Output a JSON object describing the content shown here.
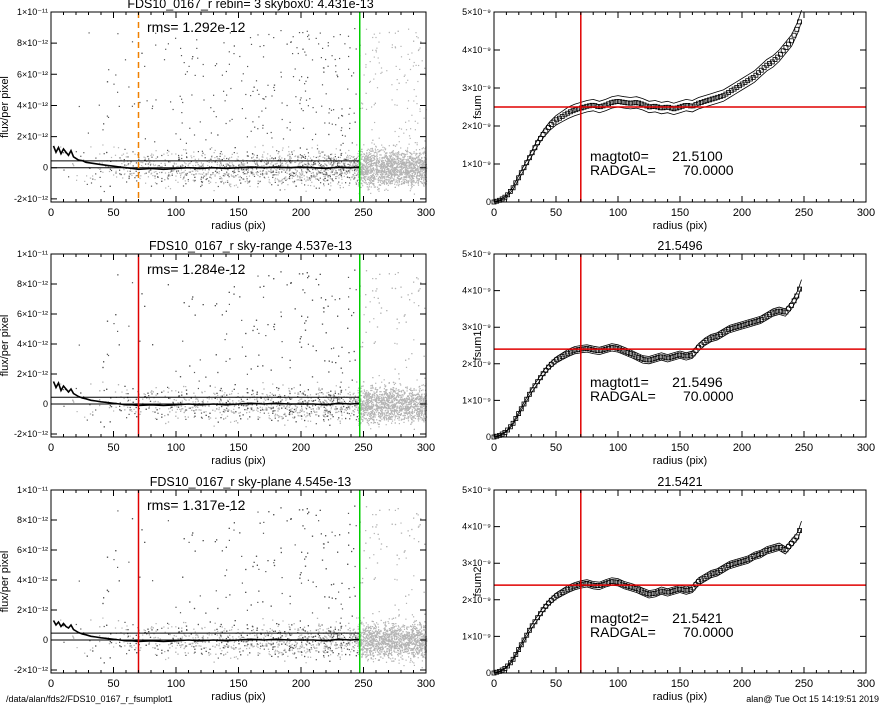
{
  "footer": {
    "path": "/data/alan/fds2/FDS10_0167_r_fsumplot1",
    "user": "alan@",
    "timestamp": "Tue Oct 15 14:19:51 2019"
  },
  "colors": {
    "background": "#ffffff",
    "axes": "#000000",
    "scatter_points": "#b4b4b4",
    "profile": "#000000",
    "red_line": "#e00000",
    "green_line": "#00cc00",
    "orange_dashed": "#f08000"
  },
  "chart_data": [
    {
      "type": "scatter",
      "title": "FDS10_0167_r rebin= 3    skybox0:  4.431e-13",
      "annotation": "rms= 1.292e-12",
      "xlabel": "radius (pix)",
      "ylabel": "flux/per pixel",
      "xlim": [
        0,
        300
      ],
      "ylim": [
        -2.2e-12,
        1e-11
      ],
      "x_ticks": [
        0,
        50,
        100,
        150,
        200,
        250,
        300
      ],
      "y_ticks": [
        -2e-12,
        0,
        2e-12,
        4e-12,
        6e-12,
        8e-12,
        1e-11
      ],
      "y_tick_labels": [
        "-2×10⁻¹²",
        "0",
        "2×10⁻¹²",
        "4×10⁻¹²",
        "6×10⁻¹²",
        "8×10⁻¹²",
        "1×10⁻¹¹"
      ],
      "hlines": [
        0,
        4.431e-13
      ],
      "vlines": [
        {
          "x": 70,
          "color": "orange",
          "style": "dashed"
        },
        {
          "x": 247,
          "color": "green",
          "style": "solid"
        }
      ],
      "profile": {
        "x": [
          2,
          4,
          6,
          8,
          10,
          12,
          14,
          16,
          18,
          20,
          22,
          25,
          28,
          32,
          36,
          40,
          45,
          50,
          55,
          60,
          65,
          70,
          80,
          90,
          100,
          110,
          120,
          130,
          140,
          150,
          160,
          170,
          180,
          190,
          200,
          210,
          220,
          230,
          240,
          247
        ],
        "y": [
          1.4e-12,
          1e-12,
          1.3e-12,
          9e-13,
          1.2e-12,
          1e-12,
          8e-13,
          1.1e-12,
          7e-13,
          6e-13,
          5e-13,
          4.5e-13,
          3.5e-13,
          3e-13,
          2.5e-13,
          2e-13,
          1.5e-13,
          1e-13,
          5e-14,
          0.0,
          -5e-14,
          -1e-13,
          -5e-14,
          -1e-13,
          -5e-14,
          0.0,
          -5e-14,
          0.0,
          -5e-14,
          0.0,
          5e-14,
          0.0,
          5e-14,
          0.0,
          5e-14,
          0.0,
          -5e-14,
          5e-14,
          0.0,
          5e-14
        ]
      }
    },
    {
      "type": "line",
      "title": "",
      "ylabel": "fsum",
      "xlabel": "radius (pix)",
      "xlim": [
        0,
        300
      ],
      "ylim": [
        0,
        5e-09
      ],
      "x_ticks": [
        0,
        50,
        100,
        150,
        200,
        250,
        300
      ],
      "y_ticks": [
        0,
        1e-09,
        2e-09,
        3e-09,
        4e-09,
        5e-09
      ],
      "y_tick_labels": [
        "0",
        "1×10⁻⁹",
        "2×10⁻⁹",
        "3×10⁻⁹",
        "4×10⁻⁹",
        "5×10⁻⁹"
      ],
      "hline": 2.5e-09,
      "vline": 70,
      "annotations": [
        "magtot0=      21.5100",
        "RADGAL=       70.0000"
      ],
      "curve": {
        "x": [
          0,
          5,
          10,
          15,
          20,
          25,
          30,
          35,
          40,
          45,
          50,
          55,
          60,
          65,
          70,
          75,
          80,
          85,
          90,
          95,
          100,
          105,
          110,
          115,
          120,
          125,
          130,
          135,
          140,
          145,
          150,
          155,
          160,
          165,
          170,
          175,
          180,
          185,
          190,
          195,
          200,
          205,
          210,
          215,
          220,
          225,
          230,
          235,
          240,
          245,
          248
        ],
        "y": [
          0.0,
          5e-11,
          1.5e-10,
          3.5e-10,
          6.5e-10,
          9.5e-10,
          1.25e-09,
          1.55e-09,
          1.8e-09,
          2e-09,
          2.15e-09,
          2.25e-09,
          2.35e-09,
          2.42e-09,
          2.47e-09,
          2.52e-09,
          2.55e-09,
          2.5e-09,
          2.55e-09,
          2.62e-09,
          2.65e-09,
          2.62e-09,
          2.6e-09,
          2.62e-09,
          2.57e-09,
          2.5e-09,
          2.52e-09,
          2.47e-09,
          2.5e-09,
          2.45e-09,
          2.5e-09,
          2.55e-09,
          2.52e-09,
          2.6e-09,
          2.65e-09,
          2.7e-09,
          2.75e-09,
          2.8e-09,
          2.9e-09,
          3e-09,
          3.1e-09,
          3.2e-09,
          3.3e-09,
          3.45e-09,
          3.6e-09,
          3.7e-09,
          3.85e-09,
          4.05e-09,
          4.25e-09,
          4.6e-09,
          4.9e-09
        ]
      },
      "upper_offset": 1.5e-10,
      "lower_offset": -1.5e-10
    },
    {
      "type": "scatter",
      "title": "FDS10_0167_r sky-range  4.537e-13",
      "annotation": "rms= 1.284e-12",
      "xlabel": "radius (pix)",
      "ylabel": "flux/per pixel",
      "xlim": [
        0,
        300
      ],
      "ylim": [
        -2.2e-12,
        1e-11
      ],
      "x_ticks": [
        0,
        50,
        100,
        150,
        200,
        250,
        300
      ],
      "y_ticks": [
        -2e-12,
        0,
        2e-12,
        4e-12,
        6e-12,
        8e-12,
        1e-11
      ],
      "y_tick_labels": [
        "-2×10⁻¹²",
        "0",
        "2×10⁻¹²",
        "4×10⁻¹²",
        "6×10⁻¹²",
        "8×10⁻¹²",
        "1×10⁻¹¹"
      ],
      "hlines": [
        0,
        4.537e-13
      ],
      "vlines": [
        {
          "x": 70,
          "color": "red",
          "style": "solid"
        },
        {
          "x": 247,
          "color": "green",
          "style": "solid"
        }
      ],
      "profile": {
        "x": [
          2,
          4,
          6,
          8,
          10,
          12,
          14,
          16,
          18,
          20,
          22,
          25,
          28,
          32,
          36,
          40,
          45,
          50,
          55,
          60,
          65,
          70,
          80,
          90,
          100,
          110,
          120,
          130,
          140,
          150,
          160,
          170,
          180,
          190,
          200,
          210,
          220,
          230,
          240,
          247
        ],
        "y": [
          1.5e-12,
          1.1e-12,
          1.4e-12,
          9e-13,
          1.2e-12,
          1e-12,
          8e-13,
          1e-12,
          7e-13,
          6e-13,
          5e-13,
          4e-13,
          3.5e-13,
          2.5e-13,
          2e-13,
          1.5e-13,
          1e-13,
          5e-14,
          0.0,
          -5e-14,
          -5e-14,
          -1e-13,
          -5e-14,
          -1e-13,
          -5e-14,
          0.0,
          -5e-14,
          0.0,
          -5e-14,
          0.0,
          5e-14,
          0.0,
          5e-14,
          0.0,
          0.0,
          0.0,
          -5e-14,
          5e-14,
          0.0,
          5e-14
        ]
      }
    },
    {
      "type": "line",
      "title": "21.5496",
      "ylabel": "fsum1",
      "xlabel": "radius (pix)",
      "xlim": [
        0,
        300
      ],
      "ylim": [
        0,
        5e-09
      ],
      "x_ticks": [
        0,
        50,
        100,
        150,
        200,
        250,
        300
      ],
      "y_ticks": [
        0,
        1e-09,
        2e-09,
        3e-09,
        4e-09,
        5e-09
      ],
      "y_tick_labels": [
        "0",
        "1×10⁻⁹",
        "2×10⁻⁹",
        "3×10⁻⁹",
        "4×10⁻⁹",
        "5×10⁻⁹"
      ],
      "hline": 2.4e-09,
      "vline": 70,
      "annotations": [
        "magtot1=      21.5496",
        "RADGAL=       70.0000"
      ],
      "curve": {
        "x": [
          0,
          5,
          10,
          15,
          20,
          25,
          30,
          35,
          40,
          45,
          50,
          55,
          60,
          65,
          70,
          75,
          80,
          85,
          90,
          95,
          100,
          105,
          110,
          115,
          120,
          125,
          130,
          135,
          140,
          145,
          150,
          155,
          160,
          165,
          170,
          175,
          180,
          185,
          190,
          195,
          200,
          205,
          210,
          215,
          220,
          225,
          230,
          235,
          240,
          245,
          248
        ],
        "y": [
          0.0,
          5e-11,
          1.5e-10,
          3.5e-10,
          6.5e-10,
          9.5e-10,
          1.25e-09,
          1.5e-09,
          1.75e-09,
          1.95e-09,
          2.1e-09,
          2.2e-09,
          2.3e-09,
          2.37e-09,
          2.4e-09,
          2.42e-09,
          2.38e-09,
          2.35e-09,
          2.4e-09,
          2.45e-09,
          2.42e-09,
          2.35e-09,
          2.28e-09,
          2.2e-09,
          2.12e-09,
          2.1e-09,
          2.15e-09,
          2.2e-09,
          2.15e-09,
          2.2e-09,
          2.25e-09,
          2.2e-09,
          2.25e-09,
          2.45e-09,
          2.6e-09,
          2.7e-09,
          2.75e-09,
          2.85e-09,
          2.95e-09,
          3e-09,
          3.05e-09,
          3.1e-09,
          3.15e-09,
          3.2e-09,
          3.3e-09,
          3.4e-09,
          3.45e-09,
          3.4e-09,
          3.6e-09,
          3.9e-09,
          4.2e-09
        ]
      },
      "upper_offset": 1e-10,
      "lower_offset": -1e-10
    },
    {
      "type": "scatter",
      "title": "FDS10_0167_r sky-plane  4.545e-13",
      "annotation": "rms= 1.317e-12",
      "xlabel": "radius (pix)",
      "ylabel": "flux/per pixel",
      "xlim": [
        0,
        300
      ],
      "ylim": [
        -2.2e-12,
        1e-11
      ],
      "x_ticks": [
        0,
        50,
        100,
        150,
        200,
        250,
        300
      ],
      "y_ticks": [
        -2e-12,
        0,
        2e-12,
        4e-12,
        6e-12,
        8e-12,
        1e-11
      ],
      "y_tick_labels": [
        "-2×10⁻¹²",
        "0",
        "2×10⁻¹²",
        "4×10⁻¹²",
        "6×10⁻¹²",
        "8×10⁻¹²",
        "1×10⁻¹¹"
      ],
      "hlines": [
        0,
        4.545e-13
      ],
      "vlines": [
        {
          "x": 70,
          "color": "red",
          "style": "solid"
        },
        {
          "x": 247,
          "color": "green",
          "style": "solid"
        }
      ],
      "profile": {
        "x": [
          2,
          4,
          6,
          8,
          10,
          12,
          14,
          16,
          18,
          20,
          22,
          25,
          28,
          32,
          36,
          40,
          45,
          50,
          55,
          60,
          65,
          70,
          80,
          90,
          100,
          110,
          120,
          130,
          140,
          150,
          160,
          170,
          180,
          190,
          200,
          210,
          220,
          230,
          240,
          247
        ],
        "y": [
          1.3e-12,
          1e-12,
          1.2e-12,
          9e-13,
          1.1e-12,
          9e-13,
          8e-13,
          1e-12,
          7e-13,
          6e-13,
          5e-13,
          4e-13,
          3.5e-13,
          2.5e-13,
          2e-13,
          1.5e-13,
          1e-13,
          5e-14,
          0.0,
          -5e-14,
          -5e-14,
          -1e-13,
          -5e-14,
          -1e-13,
          -5e-14,
          0.0,
          -5e-14,
          0.0,
          -5e-14,
          0.0,
          5e-14,
          0.0,
          5e-14,
          0.0,
          0.0,
          0.0,
          -5e-14,
          5e-14,
          0.0,
          5e-14
        ]
      }
    },
    {
      "type": "line",
      "title": "21.5421",
      "ylabel": "fsum2",
      "xlabel": "radius (pix)",
      "xlim": [
        0,
        300
      ],
      "ylim": [
        0,
        5e-09
      ],
      "x_ticks": [
        0,
        50,
        100,
        150,
        200,
        250,
        300
      ],
      "y_ticks": [
        0,
        1e-09,
        2e-09,
        3e-09,
        4e-09,
        5e-09
      ],
      "y_tick_labels": [
        "0",
        "1×10⁻⁹",
        "2×10⁻⁹",
        "3×10⁻⁹",
        "4×10⁻⁹",
        "5×10⁻⁹"
      ],
      "hline": 2.4e-09,
      "vline": 70,
      "annotations": [
        "magtot2=      21.5421",
        "RADGAL=       70.0000"
      ],
      "curve": {
        "x": [
          0,
          5,
          10,
          15,
          20,
          25,
          30,
          35,
          40,
          45,
          50,
          55,
          60,
          65,
          70,
          75,
          80,
          85,
          90,
          95,
          100,
          105,
          110,
          115,
          120,
          125,
          130,
          135,
          140,
          145,
          150,
          155,
          160,
          165,
          170,
          175,
          180,
          185,
          190,
          195,
          200,
          205,
          210,
          215,
          220,
          225,
          230,
          235,
          240,
          245,
          248
        ],
        "y": [
          0.0,
          5e-11,
          1.5e-10,
          3.5e-10,
          6.5e-10,
          9.5e-10,
          1.25e-09,
          1.5e-09,
          1.75e-09,
          1.95e-09,
          2.1e-09,
          2.2e-09,
          2.3e-09,
          2.37e-09,
          2.42e-09,
          2.45e-09,
          2.4e-09,
          2.38e-09,
          2.45e-09,
          2.5e-09,
          2.48e-09,
          2.4e-09,
          2.35e-09,
          2.3e-09,
          2.22e-09,
          2.15e-09,
          2.18e-09,
          2.25e-09,
          2.2e-09,
          2.25e-09,
          2.3e-09,
          2.25e-09,
          2.3e-09,
          2.5e-09,
          2.6e-09,
          2.7e-09,
          2.75e-09,
          2.85e-09,
          2.95e-09,
          3e-09,
          3.05e-09,
          3.1e-09,
          3.2e-09,
          3.25e-09,
          3.35e-09,
          3.4e-09,
          3.45e-09,
          3.35e-09,
          3.55e-09,
          3.75e-09,
          4.05e-09
        ]
      },
      "upper_offset": 1e-10,
      "lower_offset": -1e-10
    }
  ]
}
